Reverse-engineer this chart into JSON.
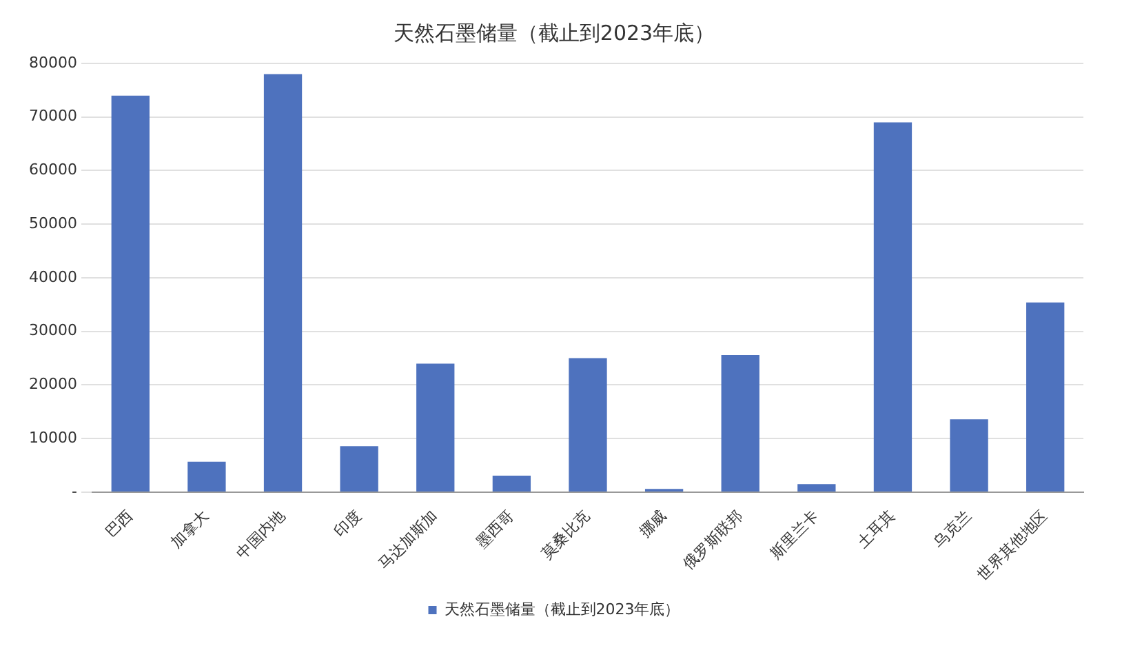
{
  "chart_data": {
    "type": "bar",
    "title": "天然石墨储量（截止到2023年底）",
    "categories": [
      "巴西",
      "加拿大",
      "中国内地",
      "印度",
      "马达加斯加",
      "墨西哥",
      "莫桑比克",
      "挪威",
      "俄罗斯联邦",
      "斯里兰卡",
      "土耳其",
      "乌克兰",
      "世界其他地区"
    ],
    "series": [
      {
        "name": "天然石墨储量（截止到2023年底）",
        "color": "#4e72be",
        "values": [
          74000,
          5700,
          78000,
          8600,
          24000,
          3100,
          25000,
          600,
          25600,
          1500,
          69000,
          13600,
          35400
        ]
      }
    ],
    "ylim": [
      0,
      80000
    ],
    "yticks": [
      {
        "value": 0,
        "label": "-"
      },
      10000,
      20000,
      30000,
      40000,
      50000,
      60000,
      70000,
      80000
    ],
    "grid": "y",
    "legend": "bottom"
  }
}
